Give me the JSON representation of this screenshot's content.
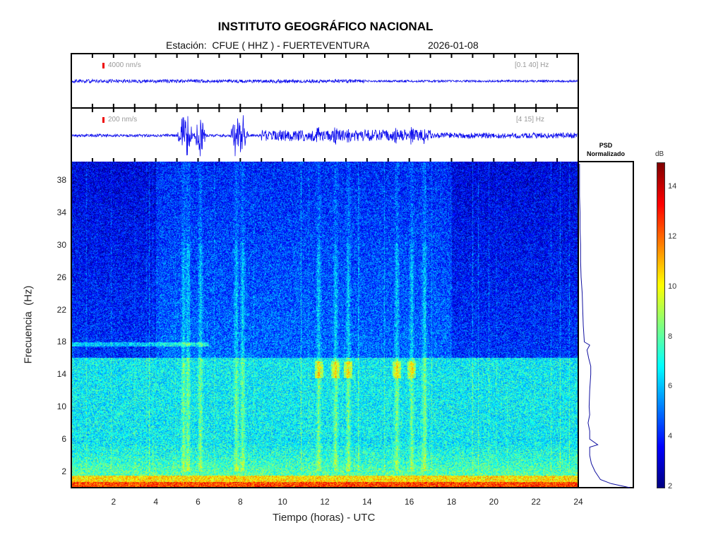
{
  "header": {
    "title": "INSTITUTO GEOGRÁFICO NACIONAL",
    "station": "Estación:  CFUE ( HHZ ) - FUERTEVENTURA",
    "date": "2026-01-08"
  },
  "traces": [
    {
      "scale": "4000 nm/s",
      "band": "[0.1 40] Hz"
    },
    {
      "scale": "200 nm/s",
      "band": "[4 15] Hz"
    }
  ],
  "psd": {
    "title_line1": "PSD",
    "title_line2": "Normalizado",
    "freq_hz": [
      0,
      0.5,
      1,
      2,
      3,
      4,
      5,
      5.3,
      6,
      7,
      8,
      9,
      10,
      12,
      14,
      15,
      16,
      17,
      17.6,
      18,
      20,
      22,
      24,
      26,
      28,
      30,
      32,
      34,
      36,
      38,
      40
    ],
    "value": [
      0.95,
      0.6,
      0.4,
      0.3,
      0.23,
      0.2,
      0.2,
      0.35,
      0.2,
      0.2,
      0.17,
      0.2,
      0.19,
      0.2,
      0.22,
      0.22,
      0.18,
      0.15,
      0.2,
      0.1,
      0.08,
      0.07,
      0.06,
      0.04,
      0.03,
      0.03,
      0.02,
      0.02,
      0.01,
      0.01,
      0.01
    ]
  },
  "chart_data": {
    "type": "heatmap",
    "title": "INSTITUTO GEOGRÁFICO NACIONAL",
    "xlabel": "Tiempo (horas) - UTC",
    "ylabel": "Frecuencia  (Hz)",
    "xlim": [
      0,
      24
    ],
    "ylim": [
      0,
      40
    ],
    "xticks": [
      "2",
      "4",
      "6",
      "8",
      "10",
      "12",
      "14",
      "16",
      "18",
      "20",
      "22",
      "24"
    ],
    "yticks": [
      "2",
      "6",
      "10",
      "14",
      "18",
      "22",
      "26",
      "30",
      "34",
      "38"
    ],
    "colorbar": {
      "label": "dB",
      "range": [
        2,
        15
      ],
      "ticks": [
        "2",
        "4",
        "6",
        "8",
        "10",
        "12",
        "14"
      ],
      "colormap": "jet"
    },
    "events_hours": [
      5.3,
      5.5,
      6.1,
      7.8,
      8.1,
      11.7,
      12.5,
      13.1,
      15.4,
      16.1,
      16.7
    ],
    "line_17_6hz_hours": [
      0,
      6.5
    ]
  }
}
